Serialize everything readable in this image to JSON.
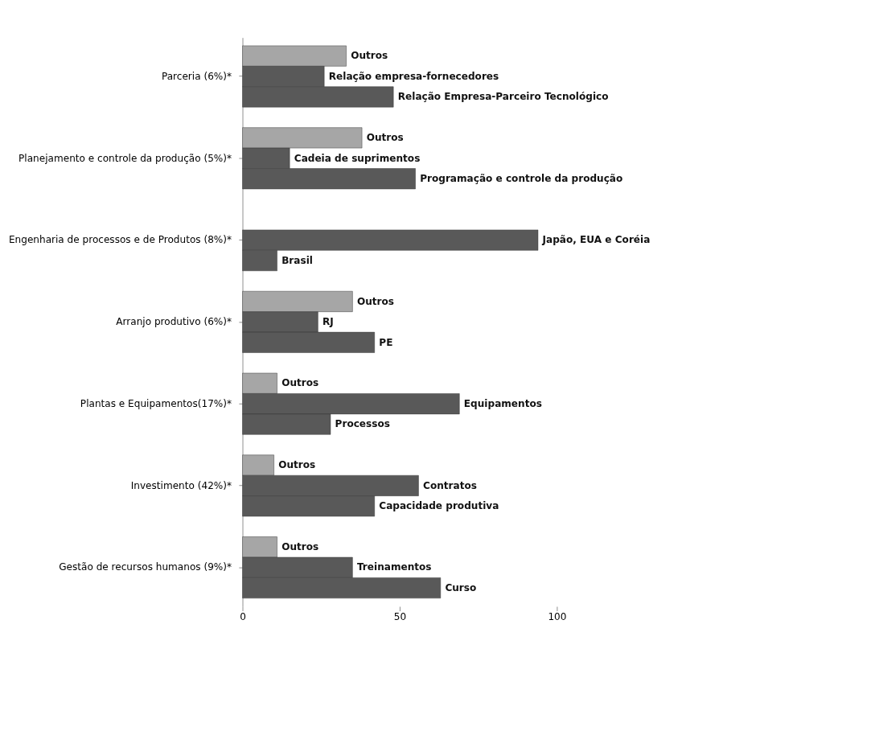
{
  "chart_data": {
    "type": "bar",
    "orientation": "horizontal",
    "categories": [
      "Parceria (6%)*",
      "Planejamento e controle da produção (5%)*",
      "Engenharia de processos e de Produtos (8%)*",
      "Arranjo produtivo (6%)*",
      "Plantas e Equipamentos(17%)*",
      "Investimento (42%)*",
      "Gestão de recursos humanos (9%)*"
    ],
    "series": [
      {
        "color": "#a6a6a6",
        "values": [
          33,
          38,
          null,
          35,
          11,
          10,
          11
        ],
        "value_labels": [
          "Outros",
          "Outros",
          null,
          "Outros",
          "Outros",
          "Outros",
          "Outros"
        ]
      },
      {
        "color": "#595959",
        "values": [
          26,
          15,
          94,
          24,
          69,
          56,
          35
        ],
        "value_labels": [
          "Relação empresa-fornecedores",
          "Cadeia de suprimentos",
          "Japão, EUA e Coréia",
          "RJ",
          "Equipamentos",
          "Contratos",
          "Treinamentos"
        ]
      },
      {
        "color": "#595959",
        "values": [
          48,
          55,
          11,
          42,
          28,
          42,
          63
        ],
        "value_labels": [
          "Relação Empresa-Parceiro Tecnológico",
          "Programação e controle da produção",
          "Brasil",
          "PE",
          "Processos",
          "Capacidade produtiva",
          "Curso"
        ]
      }
    ],
    "xlim": [
      0,
      100
    ],
    "xticks": [
      0,
      50,
      100
    ],
    "grid": false,
    "legend": false
  }
}
